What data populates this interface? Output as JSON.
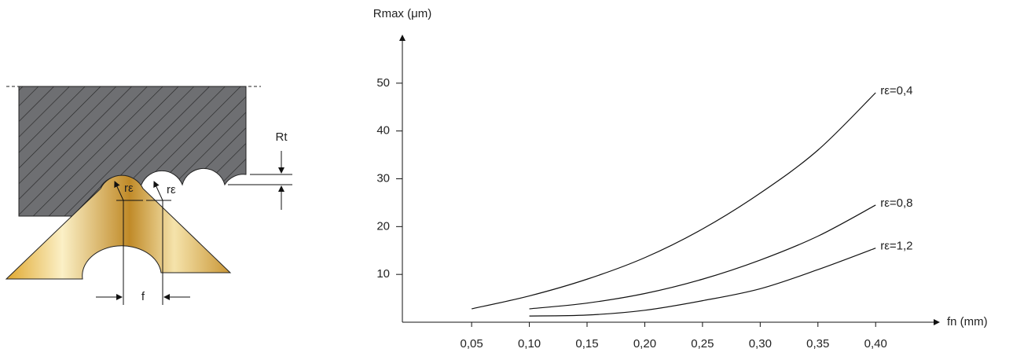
{
  "diagram": {
    "labels": {
      "nose_radius_left": "rε",
      "nose_radius_right": "rε",
      "roughness": "Rt",
      "feed": "f"
    }
  },
  "chart_data": {
    "type": "line",
    "y_label": "Rmax (μm)",
    "x_label": "fn (mm)",
    "xlim": [
      -0.01,
      0.455
    ],
    "ylim": [
      0,
      60
    ],
    "xticks": [
      {
        "value": 0.05,
        "label": "0,05"
      },
      {
        "value": 0.1,
        "label": "0,10"
      },
      {
        "value": 0.15,
        "label": "0,15"
      },
      {
        "value": 0.2,
        "label": "0,20"
      },
      {
        "value": 0.25,
        "label": "0,25"
      },
      {
        "value": 0.3,
        "label": "0,30"
      },
      {
        "value": 0.35,
        "label": "0,35"
      },
      {
        "value": 0.4,
        "label": "0,40"
      }
    ],
    "yticks": [
      10,
      20,
      30,
      40,
      50
    ],
    "series": [
      {
        "name": "rε=0,4",
        "color": "#111111",
        "x": [
          0.05,
          0.1,
          0.15,
          0.2,
          0.25,
          0.3,
          0.35,
          0.4
        ],
        "values": [
          2.8,
          5.5,
          9,
          13.5,
          19.5,
          27,
          36,
          48
        ]
      },
      {
        "name": "rε=0,8",
        "color": "#111111",
        "x": [
          0.1,
          0.15,
          0.2,
          0.25,
          0.3,
          0.35,
          0.4
        ],
        "values": [
          2.8,
          4,
          6,
          9,
          13,
          18,
          24.5
        ]
      },
      {
        "name": "rε=1,2",
        "color": "#111111",
        "x": [
          0.1,
          0.15,
          0.2,
          0.25,
          0.3,
          0.35,
          0.4
        ],
        "values": [
          1.3,
          1.5,
          2.5,
          4.5,
          7,
          11,
          15.5
        ]
      }
    ]
  }
}
